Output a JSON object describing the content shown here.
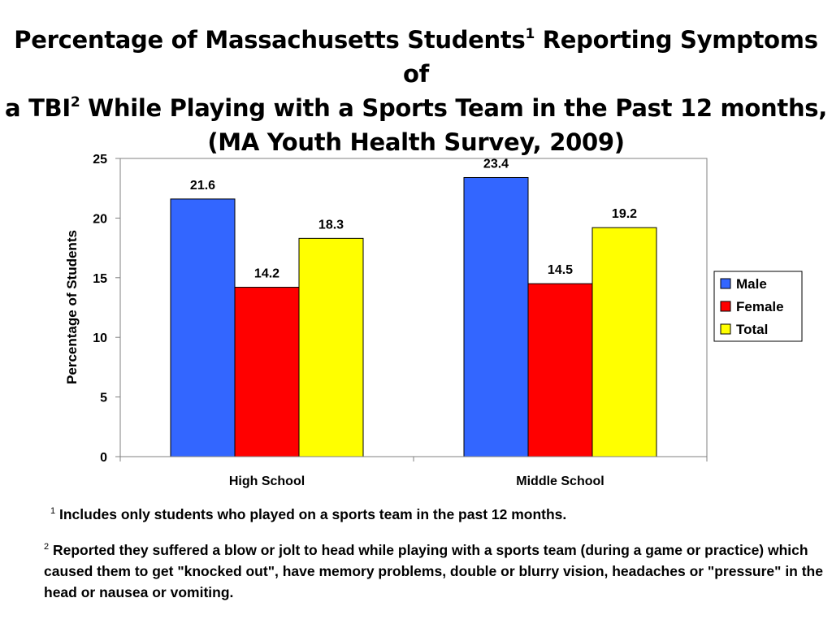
{
  "title": {
    "part1": "Percentage of Massachusetts Students",
    "sup1": "1",
    "part2": " Reporting Symptoms of",
    "part3": "a TBI",
    "sup2": "2",
    "part4": " While Playing with a Sports Team in the Past 12 months,",
    "part5": "(MA Youth Health Survey, 2009)"
  },
  "chart_data": {
    "type": "bar",
    "categories": [
      "High School",
      "Middle School"
    ],
    "series": [
      {
        "name": "Male",
        "values": [
          21.6,
          23.4
        ],
        "color": "#3366FF"
      },
      {
        "name": "Female",
        "values": [
          14.2,
          14.5
        ],
        "color": "#FF0000"
      },
      {
        "name": "Total",
        "values": [
          18.3,
          19.2
        ],
        "color": "#FFFF00"
      }
    ],
    "ylabel": "Percentage of Students",
    "xlabel": "",
    "ylim": [
      0,
      25
    ],
    "yticks": [
      0,
      5,
      10,
      15,
      20,
      25
    ],
    "grid": false,
    "legend": "right"
  },
  "footnotes": [
    {
      "marker": "1",
      "text": " Includes only students who played on a sports team in the past 12 months."
    },
    {
      "marker": "2",
      "text": " Reported they suffered a blow or jolt to head while playing with a sports team (during a game or practice) which caused them to get \"knocked out\", have memory problems, double or blurry vision, headaches or \"pressure\" in the head or nausea or vomiting."
    }
  ]
}
